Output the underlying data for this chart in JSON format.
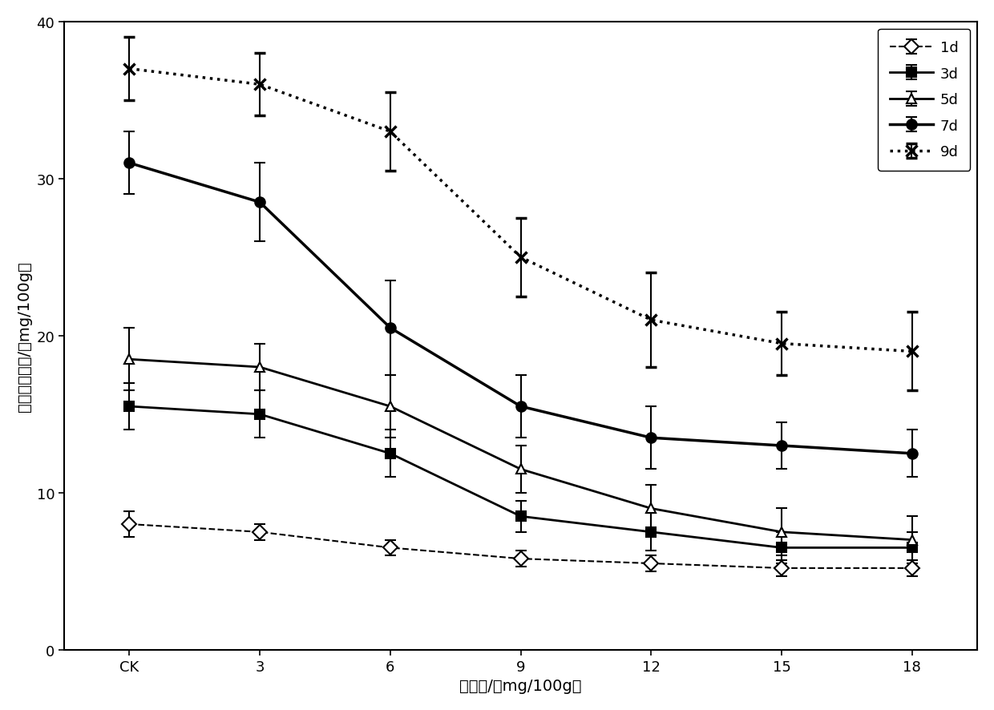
{
  "x_labels": [
    "CK",
    "3",
    "6",
    "9",
    "12",
    "15",
    "18"
  ],
  "x_positions": [
    0,
    1,
    2,
    3,
    4,
    5,
    6
  ],
  "series": {
    "1d": {
      "y": [
        8.0,
        7.5,
        6.5,
        5.8,
        5.5,
        5.2,
        5.2
      ],
      "yerr": [
        0.8,
        0.5,
        0.5,
        0.5,
        0.5,
        0.5,
        0.5
      ],
      "linestyle": "--",
      "marker": "D",
      "markersize": 9,
      "color": "#000000",
      "linewidth": 1.5,
      "fillstyle": "none",
      "label": "1d"
    },
    "3d": {
      "y": [
        15.5,
        15.0,
        12.5,
        8.5,
        7.5,
        6.5,
        6.5
      ],
      "yerr": [
        1.5,
        1.5,
        1.5,
        1.0,
        1.2,
        1.0,
        1.0
      ],
      "linestyle": "-",
      "marker": "s",
      "markersize": 9,
      "color": "#000000",
      "linewidth": 2.0,
      "fillstyle": "full",
      "label": "3d"
    },
    "5d": {
      "y": [
        18.5,
        18.0,
        15.5,
        11.5,
        9.0,
        7.5,
        7.0
      ],
      "yerr": [
        2.0,
        1.5,
        2.0,
        1.5,
        1.5,
        1.5,
        1.5
      ],
      "linestyle": "-",
      "marker": "^",
      "markersize": 9,
      "color": "#000000",
      "linewidth": 2.0,
      "fillstyle": "none",
      "label": "5d"
    },
    "7d": {
      "y": [
        31.0,
        28.5,
        20.5,
        15.5,
        13.5,
        13.0,
        12.5
      ],
      "yerr": [
        2.0,
        2.5,
        3.0,
        2.0,
        2.0,
        1.5,
        1.5
      ],
      "linestyle": "-",
      "marker": "o",
      "markersize": 9,
      "color": "#000000",
      "linewidth": 2.5,
      "fillstyle": "full",
      "label": "7d"
    },
    "9d": {
      "y": [
        37.0,
        36.0,
        33.0,
        25.0,
        21.0,
        19.5,
        19.0
      ],
      "yerr": [
        2.0,
        2.0,
        2.5,
        2.5,
        3.0,
        2.0,
        2.5
      ],
      "linestyle": ":",
      "marker": "x",
      "markersize": 10,
      "color": "#000000",
      "linewidth": 2.5,
      "fillstyle": "full",
      "label": "9d"
    }
  },
  "ylabel": "挥发性盐基氯/（mg/100g）",
  "xlabel": "添加量/（mg/100g）",
  "ylim": [
    0,
    40
  ],
  "yticks": [
    0,
    10,
    20,
    30,
    40
  ],
  "title_fontsize": 14,
  "axis_fontsize": 14,
  "tick_fontsize": 13,
  "legend_fontsize": 13,
  "background_color": "#ffffff"
}
